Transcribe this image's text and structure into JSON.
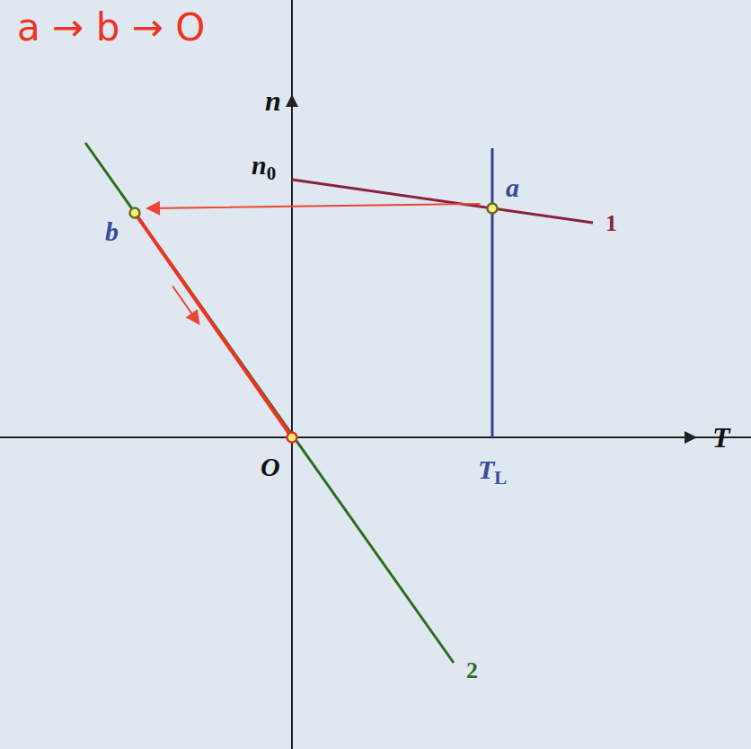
{
  "chart_data": {
    "type": "line",
    "tick_labels": false,
    "grid": false,
    "x_label": "T",
    "y_label": "n",
    "xlim": [
      -3.25,
      5.11
    ],
    "ylim": [
      -3.47,
      4.87
    ],
    "series": [
      {
        "name": "1",
        "color": "#8b2040",
        "x": [
          0,
          3.35
        ],
        "values": [
          2.87,
          2.39
        ]
      },
      {
        "name": "2",
        "color": "#2e6b1e",
        "x": [
          -2.3,
          1.8
        ],
        "values": [
          3.28,
          -2.51
        ]
      },
      {
        "color": "#3b3f8c",
        "x": [
          2.23,
          2.23
        ],
        "values": [
          0,
          3.22
        ]
      },
      {
        "color": "#ee3322",
        "x": [
          -1.75,
          0
        ],
        "values": [
          2.5,
          0
        ]
      }
    ],
    "points": [
      {
        "label": "a",
        "x": 2.23,
        "y": 2.55
      },
      {
        "label": "b",
        "x": -1.75,
        "y": 2.5
      },
      {
        "label": "O",
        "x": 0,
        "y": 0
      }
    ],
    "annotations": [
      {
        "text": "n",
        "sub": "0",
        "x": 0,
        "y": 2.87
      },
      {
        "text": "T",
        "sub": "L",
        "x": 2.23,
        "y": 0
      }
    ],
    "note": "a → b → O"
  }
}
